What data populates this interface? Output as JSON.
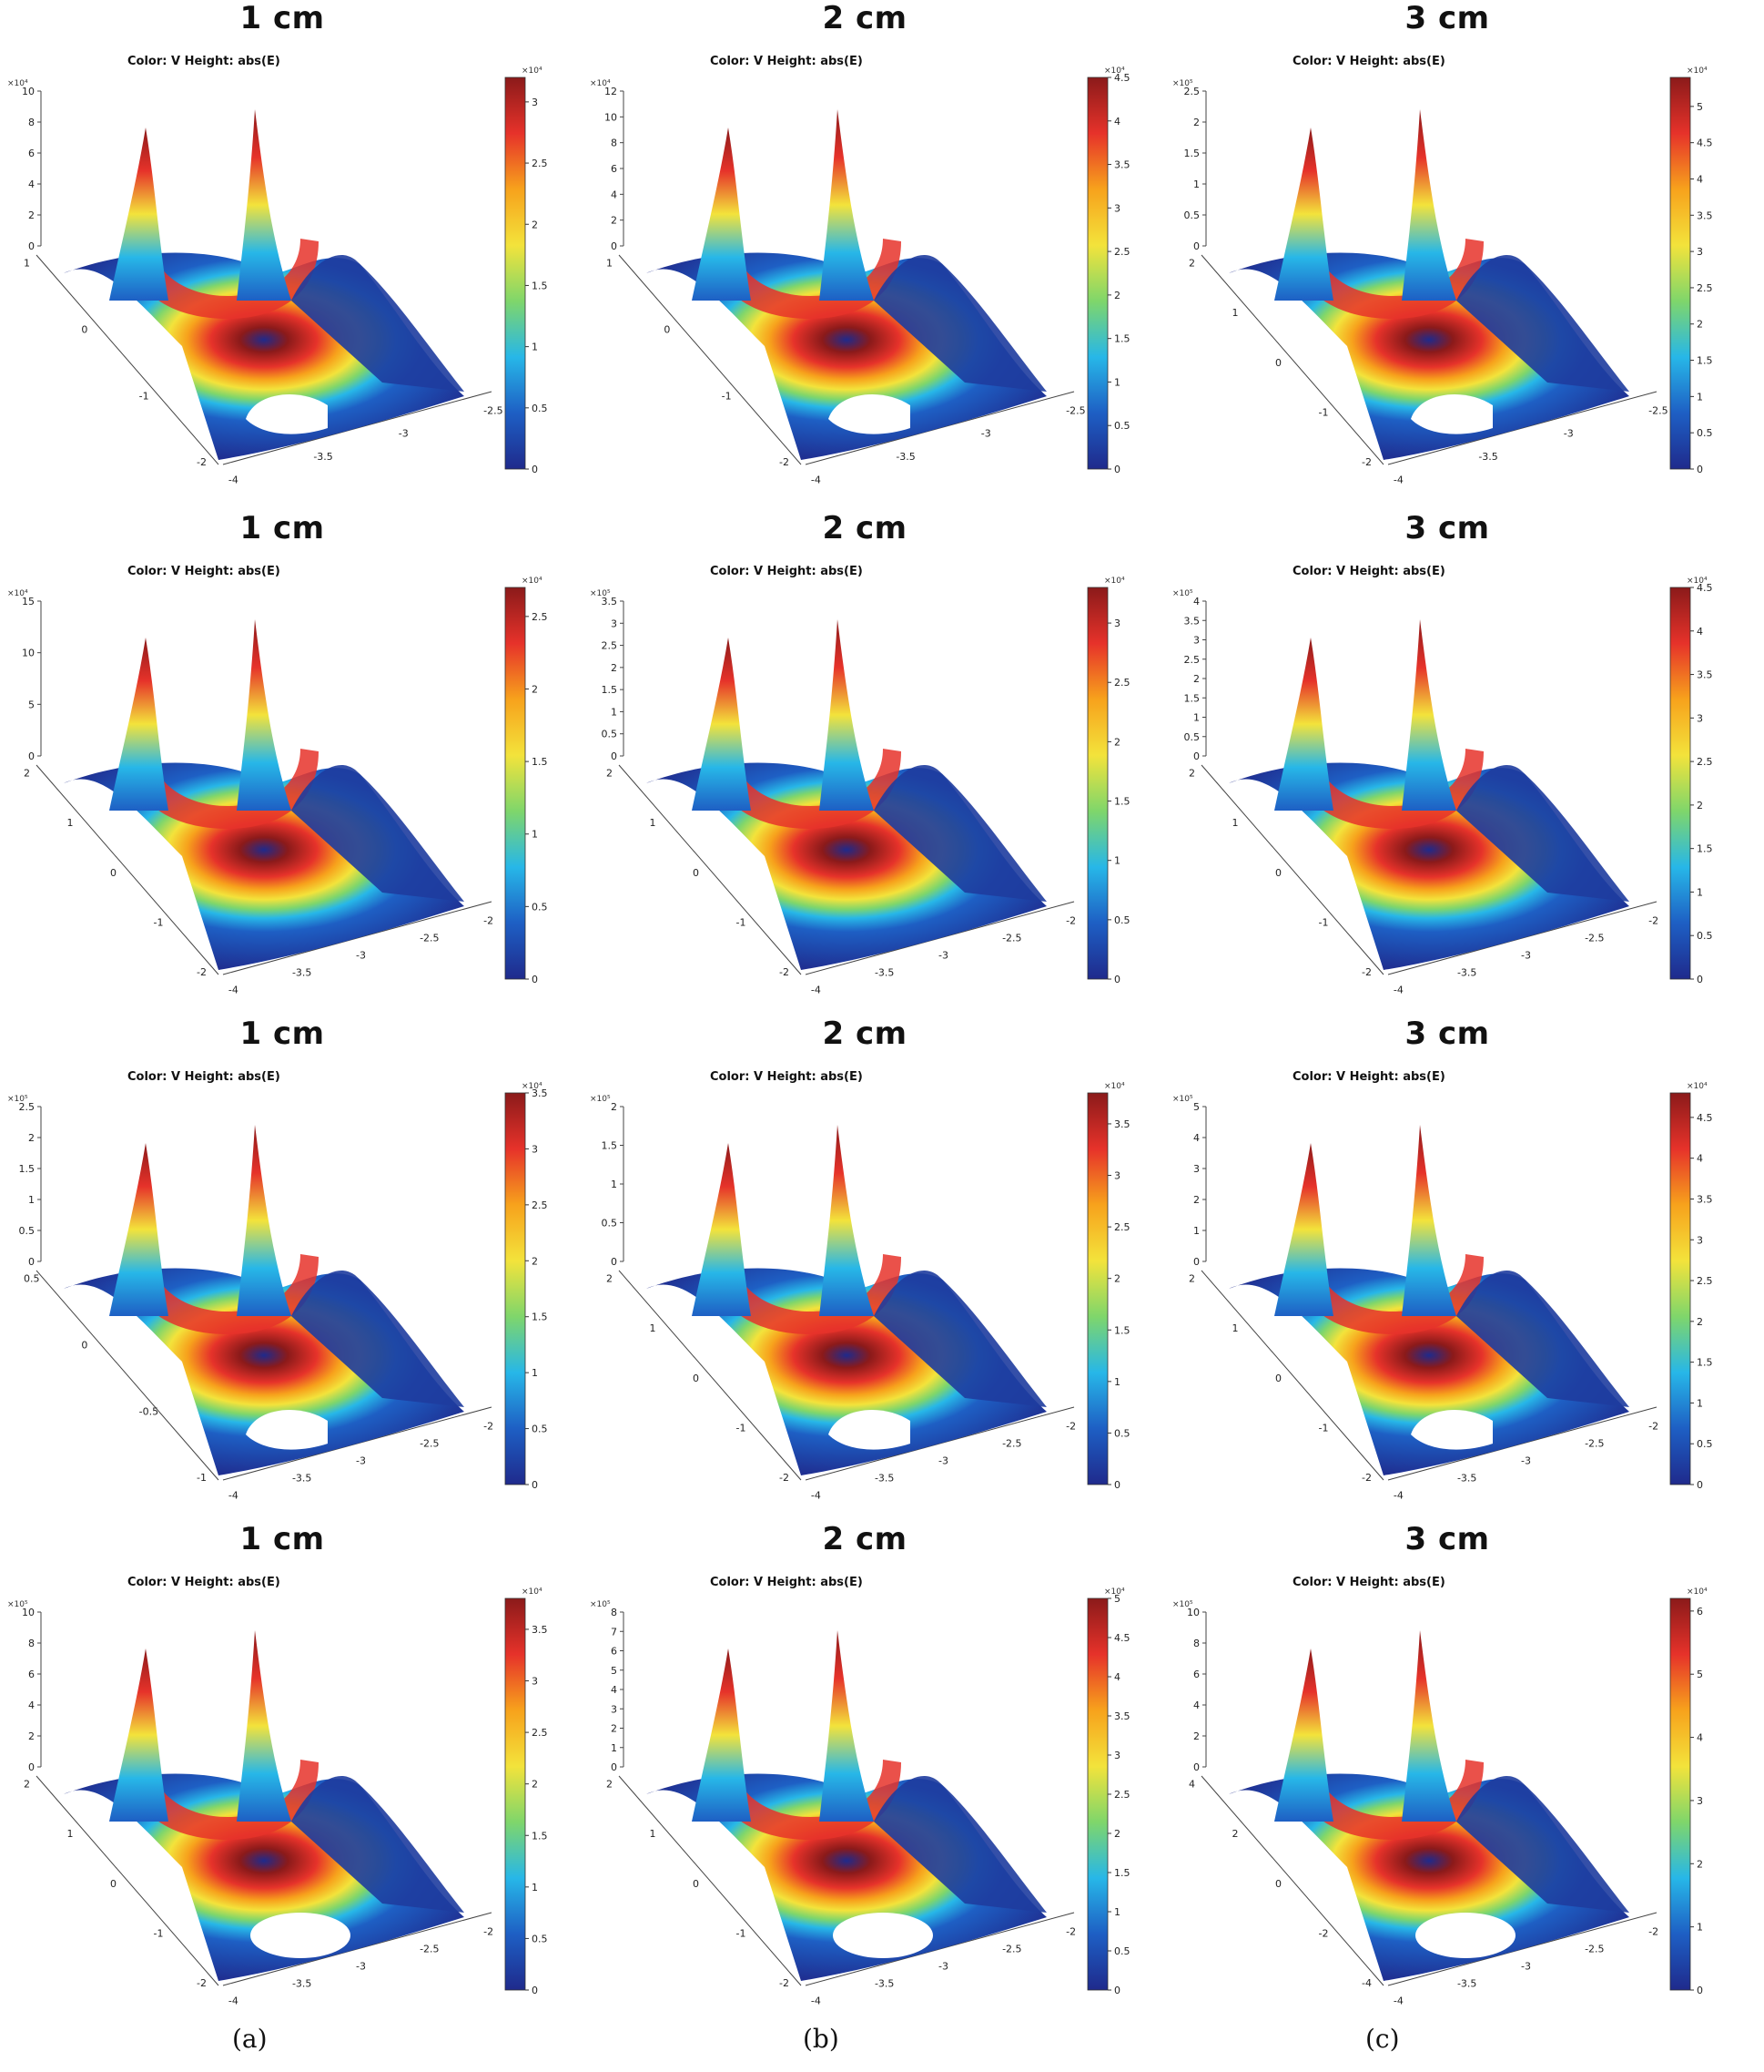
{
  "figure": {
    "captions": [
      "(a)",
      "(b)",
      "(c)"
    ],
    "colormap": [
      "#1f2a8c",
      "#1e5fc4",
      "#27b7e8",
      "#7fd66b",
      "#f3e33b",
      "#f7a21c",
      "#e6322a",
      "#8b1a1a"
    ]
  },
  "chart_data": [
    {
      "type": "surface3d",
      "title": "1 cm",
      "subtitle": "Color: V  Height: abs(E)",
      "column": "(a)",
      "row": 1,
      "z_axis": {
        "multiplier": "×10⁴",
        "ticks": [
          "0",
          "2",
          "4",
          "6",
          "8",
          "10"
        ]
      },
      "x_axis": {
        "ticks": [
          "-2",
          "-1",
          "0",
          "1"
        ]
      },
      "y_axis": {
        "ticks": [
          "-4",
          "-3.5",
          "-3",
          "-2.5"
        ]
      },
      "colorbar": {
        "multiplier": "×10⁴",
        "min": 0,
        "max": 3.2,
        "ticks": [
          "0",
          "0.5",
          "1",
          "1.5",
          "2",
          "2.5",
          "3"
        ]
      }
    },
    {
      "type": "surface3d",
      "title": "2 cm",
      "subtitle": "Color: V  Height: abs(E)",
      "column": "(b)",
      "row": 1,
      "z_axis": {
        "multiplier": "×10⁴",
        "ticks": [
          "0",
          "2",
          "4",
          "6",
          "8",
          "10",
          "12"
        ]
      },
      "x_axis": {
        "ticks": [
          "-2",
          "-1",
          "0",
          "1"
        ]
      },
      "y_axis": {
        "ticks": [
          "-4",
          "-3.5",
          "-3",
          "-2.5"
        ]
      },
      "colorbar": {
        "multiplier": "×10⁴",
        "min": 0,
        "max": 4.5,
        "ticks": [
          "0",
          "0.5",
          "1",
          "1.5",
          "2",
          "2.5",
          "3",
          "3.5",
          "4",
          "4.5"
        ]
      }
    },
    {
      "type": "surface3d",
      "title": "3 cm",
      "subtitle": "Color: V  Height: abs(E)",
      "column": "(c)",
      "row": 1,
      "z_axis": {
        "multiplier": "×10⁵",
        "ticks": [
          "0",
          "0.5",
          "1",
          "1.5",
          "2",
          "2.5"
        ]
      },
      "x_axis": {
        "ticks": [
          "-2",
          "-1",
          "0",
          "1",
          "2"
        ]
      },
      "y_axis": {
        "ticks": [
          "-4",
          "-3.5",
          "-3",
          "-2.5"
        ]
      },
      "colorbar": {
        "multiplier": "×10⁴",
        "min": 0,
        "max": 5.4,
        "ticks": [
          "0",
          "0.5",
          "1",
          "1.5",
          "2",
          "2.5",
          "3",
          "3.5",
          "4",
          "4.5",
          "5"
        ]
      }
    },
    {
      "type": "surface3d",
      "title": "1 cm",
      "subtitle": "Color: V  Height: abs(E)",
      "column": "(a)",
      "row": 2,
      "z_axis": {
        "multiplier": "×10⁴",
        "ticks": [
          "0",
          "5",
          "10",
          "15"
        ]
      },
      "x_axis": {
        "ticks": [
          "-2",
          "-1",
          "0",
          "1",
          "2"
        ]
      },
      "y_axis": {
        "ticks": [
          "-4",
          "-3.5",
          "-3",
          "-2.5",
          "-2"
        ]
      },
      "colorbar": {
        "multiplier": "×10⁴",
        "min": 0,
        "max": 2.7,
        "ticks": [
          "0",
          "0.5",
          "1",
          "1.5",
          "2",
          "2.5"
        ]
      }
    },
    {
      "type": "surface3d",
      "title": "2 cm",
      "subtitle": "Color: V  Height: abs(E)",
      "column": "(b)",
      "row": 2,
      "z_axis": {
        "multiplier": "×10⁵",
        "ticks": [
          "0",
          "0.5",
          "1",
          "1.5",
          "2",
          "2.5",
          "3",
          "3.5"
        ]
      },
      "x_axis": {
        "ticks": [
          "-2",
          "-1",
          "0",
          "1",
          "2"
        ]
      },
      "y_axis": {
        "ticks": [
          "-4",
          "-3.5",
          "-3",
          "-2.5",
          "-2"
        ]
      },
      "colorbar": {
        "multiplier": "×10⁴",
        "min": 0,
        "max": 3.3,
        "ticks": [
          "0",
          "0.5",
          "1",
          "1.5",
          "2",
          "2.5",
          "3"
        ]
      }
    },
    {
      "type": "surface3d",
      "title": "3 cm",
      "subtitle": "Color: V  Height: abs(E)",
      "column": "(c)",
      "row": 2,
      "z_axis": {
        "multiplier": "×10⁵",
        "ticks": [
          "0",
          "0.5",
          "1",
          "1.5",
          "2",
          "2.5",
          "3",
          "3.5",
          "4"
        ]
      },
      "x_axis": {
        "ticks": [
          "-2",
          "-1",
          "0",
          "1",
          "2"
        ]
      },
      "y_axis": {
        "ticks": [
          "-4",
          "-3.5",
          "-3",
          "-2.5",
          "-2"
        ]
      },
      "colorbar": {
        "multiplier": "×10⁴",
        "min": 0,
        "max": 4.5,
        "ticks": [
          "0",
          "0.5",
          "1",
          "1.5",
          "2",
          "2.5",
          "3",
          "3.5",
          "4",
          "4.5"
        ]
      }
    },
    {
      "type": "surface3d",
      "title": "1 cm",
      "subtitle": "Color: V  Height: abs(E)",
      "column": "(a)",
      "row": 3,
      "z_axis": {
        "multiplier": "×10⁵",
        "ticks": [
          "0",
          "0.5",
          "1",
          "1.5",
          "2",
          "2.5"
        ]
      },
      "x_axis": {
        "ticks": [
          "-1",
          "-0.5",
          "0",
          "0.5"
        ]
      },
      "y_axis": {
        "ticks": [
          "-4",
          "-3.5",
          "-3",
          "-2.5",
          "-2"
        ]
      },
      "colorbar": {
        "multiplier": "×10⁴",
        "min": 0,
        "max": 3.5,
        "ticks": [
          "0",
          "0.5",
          "1",
          "1.5",
          "2",
          "2.5",
          "3",
          "3.5"
        ]
      }
    },
    {
      "type": "surface3d",
      "title": "2 cm",
      "subtitle": "Color: V  Height: abs(E)",
      "column": "(b)",
      "row": 3,
      "z_axis": {
        "multiplier": "×10⁵",
        "ticks": [
          "0",
          "0.5",
          "1",
          "1.5",
          "2"
        ]
      },
      "x_axis": {
        "ticks": [
          "-2",
          "-1",
          "0",
          "1",
          "2"
        ]
      },
      "y_axis": {
        "ticks": [
          "-4",
          "-3.5",
          "-3",
          "-2.5",
          "-2"
        ]
      },
      "colorbar": {
        "multiplier": "×10⁴",
        "min": 0,
        "max": 3.8,
        "ticks": [
          "0",
          "0.5",
          "1",
          "1.5",
          "2",
          "2.5",
          "3",
          "3.5"
        ]
      }
    },
    {
      "type": "surface3d",
      "title": "3 cm",
      "subtitle": "Color: V  Height: abs(E)",
      "column": "(c)",
      "row": 3,
      "z_axis": {
        "multiplier": "×10⁵",
        "ticks": [
          "0",
          "1",
          "2",
          "3",
          "4",
          "5"
        ]
      },
      "x_axis": {
        "ticks": [
          "-2",
          "-1",
          "0",
          "1",
          "2"
        ]
      },
      "y_axis": {
        "ticks": [
          "-4",
          "-3.5",
          "-3",
          "-2.5",
          "-2"
        ]
      },
      "colorbar": {
        "multiplier": "×10⁴",
        "min": 0,
        "max": 4.8,
        "ticks": [
          "0",
          "0.5",
          "1",
          "1.5",
          "2",
          "2.5",
          "3",
          "3.5",
          "4",
          "4.5"
        ]
      }
    },
    {
      "type": "surface3d",
      "title": "1 cm",
      "subtitle": "Color: V  Height: abs(E)",
      "column": "(a)",
      "row": 4,
      "z_axis": {
        "multiplier": "×10⁵",
        "ticks": [
          "0",
          "2",
          "4",
          "6",
          "8",
          "10"
        ]
      },
      "x_axis": {
        "ticks": [
          "-2",
          "-1",
          "0",
          "1",
          "2"
        ]
      },
      "y_axis": {
        "ticks": [
          "-4",
          "-3.5",
          "-3",
          "-2.5",
          "-2"
        ]
      },
      "colorbar": {
        "multiplier": "×10⁴",
        "min": 0,
        "max": 3.8,
        "ticks": [
          "0",
          "0.5",
          "1",
          "1.5",
          "2",
          "2.5",
          "3",
          "3.5"
        ]
      }
    },
    {
      "type": "surface3d",
      "title": "2 cm",
      "subtitle": "Color: V  Height: abs(E)",
      "column": "(b)",
      "row": 4,
      "z_axis": {
        "multiplier": "×10⁵",
        "ticks": [
          "0",
          "1",
          "2",
          "3",
          "4",
          "5",
          "6",
          "7",
          "8"
        ]
      },
      "x_axis": {
        "ticks": [
          "-2",
          "-1",
          "0",
          "1",
          "2"
        ]
      },
      "y_axis": {
        "ticks": [
          "-4",
          "-3.5",
          "-3",
          "-2.5",
          "-2"
        ]
      },
      "colorbar": {
        "multiplier": "×10⁴",
        "min": 0,
        "max": 5,
        "ticks": [
          "0",
          "0.5",
          "1",
          "1.5",
          "2",
          "2.5",
          "3",
          "3.5",
          "4",
          "4.5",
          "5"
        ]
      }
    },
    {
      "type": "surface3d",
      "title": "3 cm",
      "subtitle": "Color: V  Height: abs(E)",
      "column": "(c)",
      "row": 4,
      "z_axis": {
        "multiplier": "×10⁵",
        "ticks": [
          "0",
          "2",
          "4",
          "6",
          "8",
          "10"
        ]
      },
      "x_axis": {
        "ticks": [
          "-4",
          "-2",
          "0",
          "2",
          "4"
        ]
      },
      "y_axis": {
        "ticks": [
          "-4",
          "-3.5",
          "-3",
          "-2.5",
          "-2"
        ]
      },
      "colorbar": {
        "multiplier": "×10⁴",
        "min": 0,
        "max": 6.2,
        "ticks": [
          "0",
          "1",
          "2",
          "3",
          "4",
          "5",
          "6"
        ]
      }
    }
  ]
}
